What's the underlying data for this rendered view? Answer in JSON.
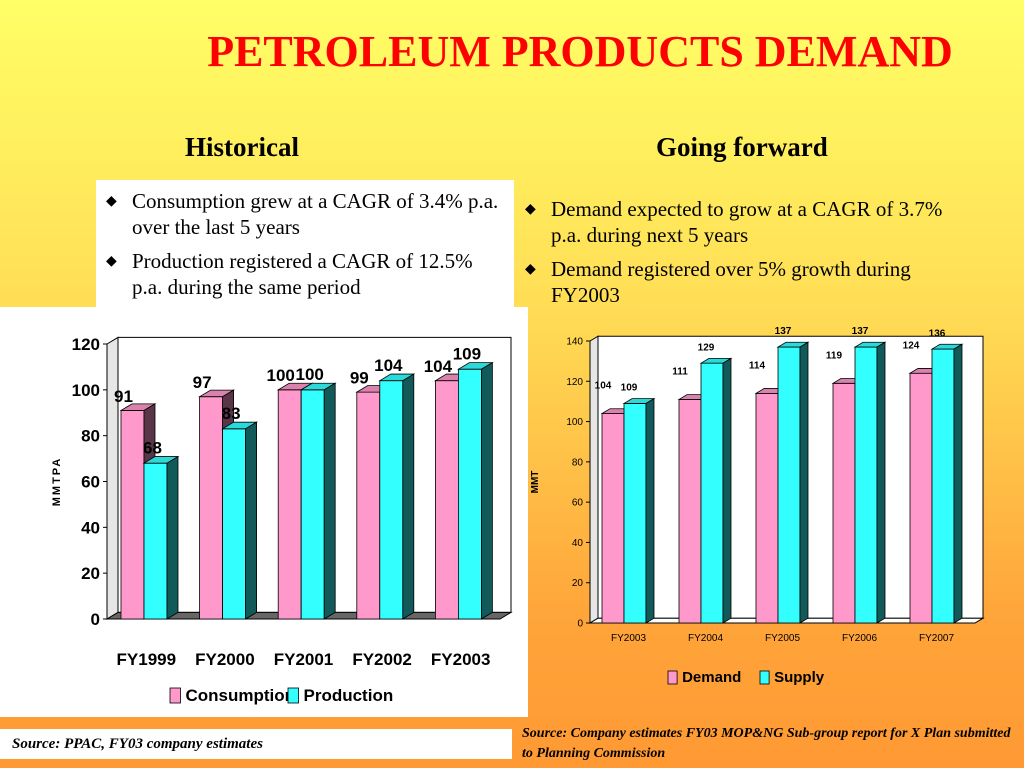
{
  "slide": {
    "title": "PETROLEUM PRODUCTS DEMAND",
    "left_heading": "Historical",
    "right_heading": "Going forward",
    "left_bullets": [
      "Consumption grew at a CAGR of 3.4% p.a. over the last 5 years",
      "Production registered a CAGR of 12.5% p.a. during the same period"
    ],
    "right_bullets": [
      "Demand expected to grow at a CAGR of 3.7% p.a. during next 5 years",
      "Demand registered over 5% growth during FY2003"
    ],
    "left_source": "Source: PPAC, FY03 company estimates",
    "right_source": "Source: Company estimates FY03  MOP&NG Sub-group report for X Plan submitted to Planning Commission"
  },
  "colors": {
    "title": "#ff0000",
    "series_a": "#ff99cc",
    "series_b": "#33ffff"
  },
  "chart_data": [
    {
      "type": "bar",
      "categories": [
        "FY1999",
        "FY2000",
        "FY2001",
        "FY2002",
        "FY2003"
      ],
      "series": [
        {
          "name": "Consumption",
          "values": [
            91,
            97,
            100,
            99,
            104
          ]
        },
        {
          "name": "Production",
          "values": [
            68,
            83,
            100,
            104,
            109
          ]
        }
      ],
      "ylabel": "MMTPA",
      "ylim": [
        0,
        120
      ],
      "yticks": [
        "0",
        "20",
        "40",
        "60",
        "80",
        "100",
        "120"
      ],
      "grid": false,
      "legend": "bottom"
    },
    {
      "type": "bar",
      "categories": [
        "FY2003",
        "FY2004",
        "FY2005",
        "FY2006",
        "FY2007"
      ],
      "series": [
        {
          "name": "Demand",
          "values": [
            104,
            111,
            114,
            119,
            124
          ]
        },
        {
          "name": "Supply",
          "values": [
            109,
            129,
            137,
            137,
            136
          ]
        }
      ],
      "ylabel": "MMT",
      "ylim": [
        0,
        140
      ],
      "yticks": [
        "0",
        "20",
        "40",
        "60",
        "80",
        "100",
        "120",
        "140"
      ],
      "grid": false,
      "legend": "bottom"
    }
  ]
}
